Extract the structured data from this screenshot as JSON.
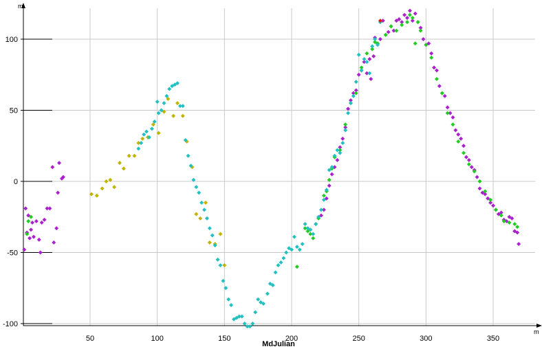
{
  "chart_data": {
    "type": "scatter",
    "xlabel": "MdJulian",
    "y_unit": "m",
    "x_unit": "m",
    "xlim": [
      0,
      375
    ],
    "ylim": [
      -102,
      120
    ],
    "xticks": [
      50,
      100,
      150,
      200,
      250,
      300,
      350
    ],
    "yticks": [
      -100,
      -50,
      0,
      50,
      100
    ],
    "grid": true,
    "series": [
      {
        "color": "#aa22cc",
        "points": [
          [
            1,
            -48
          ],
          [
            2,
            -19
          ],
          [
            3,
            -36
          ],
          [
            4,
            -24
          ],
          [
            5,
            -40
          ],
          [
            6,
            -34
          ],
          [
            7,
            -29
          ],
          [
            8,
            -39
          ],
          [
            10,
            -28
          ],
          [
            12,
            -41
          ],
          [
            13,
            -50
          ],
          [
            14,
            -29
          ],
          [
            16,
            -27
          ],
          [
            18,
            -19
          ],
          [
            20,
            -19
          ],
          [
            22,
            10
          ],
          [
            23,
            -43
          ],
          [
            25,
            -33
          ],
          [
            26,
            -8
          ],
          [
            27,
            13
          ],
          [
            29,
            2
          ],
          [
            30,
            3
          ],
          [
            236,
            24
          ],
          [
            238,
            30
          ],
          [
            240,
            38
          ],
          [
            242,
            51
          ],
          [
            244,
            57
          ],
          [
            246,
            62
          ],
          [
            248,
            64
          ],
          [
            250,
            75
          ],
          [
            252,
            78
          ],
          [
            254,
            84
          ],
          [
            256,
            76
          ],
          [
            258,
            86
          ],
          [
            259,
            72
          ],
          [
            261,
            88
          ],
          [
            262,
            101
          ],
          [
            264,
            97
          ],
          [
            266,
            100
          ],
          [
            268,
            113
          ],
          [
            270,
            103
          ],
          [
            272,
            105
          ],
          [
            274,
            109
          ],
          [
            276,
            106
          ],
          [
            278,
            113
          ],
          [
            280,
            114
          ],
          [
            282,
            112
          ],
          [
            284,
            117
          ],
          [
            286,
            115
          ],
          [
            288,
            120
          ],
          [
            290,
            113
          ],
          [
            292,
            118
          ],
          [
            294,
            112
          ],
          [
            296,
            108
          ],
          [
            298,
            100
          ],
          [
            300,
            96
          ],
          [
            302,
            97
          ],
          [
            304,
            90
          ],
          [
            306,
            80
          ],
          [
            308,
            78
          ],
          [
            310,
            67
          ],
          [
            312,
            62
          ],
          [
            314,
            60
          ],
          [
            316,
            52
          ],
          [
            318,
            48
          ],
          [
            320,
            45
          ],
          [
            322,
            36
          ],
          [
            324,
            33
          ],
          [
            326,
            30
          ],
          [
            328,
            25
          ],
          [
            330,
            17
          ],
          [
            332,
            15
          ],
          [
            334,
            10
          ],
          [
            336,
            8
          ],
          [
            338,
            3
          ],
          [
            340,
            -5
          ],
          [
            342,
            -8
          ],
          [
            344,
            -9
          ],
          [
            346,
            -12
          ],
          [
            348,
            -15
          ],
          [
            350,
            -17
          ],
          [
            352,
            -20
          ],
          [
            354,
            -23
          ],
          [
            356,
            -22
          ],
          [
            358,
            -27
          ],
          [
            360,
            -28
          ],
          [
            362,
            -25
          ],
          [
            364,
            -26
          ],
          [
            366,
            -35
          ],
          [
            368,
            -36
          ],
          [
            369,
            -44
          ],
          [
            222,
            -24
          ],
          [
            224,
            -20
          ],
          [
            226,
            -12
          ],
          [
            228,
            -3
          ],
          [
            230,
            5
          ],
          [
            232,
            10
          ],
          [
            234,
            15
          ]
        ]
      },
      {
        "color": "#22cc22",
        "points": [
          [
            3,
            -37
          ],
          [
            4,
            -28
          ],
          [
            6,
            -25
          ],
          [
            204,
            -60
          ],
          [
            210,
            -33
          ],
          [
            212,
            -35
          ],
          [
            214,
            -37
          ],
          [
            216,
            -40
          ],
          [
            218,
            -30
          ],
          [
            220,
            -26
          ],
          [
            224,
            -10
          ],
          [
            226,
            -7
          ],
          [
            228,
            1
          ],
          [
            230,
            9
          ],
          [
            232,
            17
          ],
          [
            236,
            22
          ],
          [
            240,
            40
          ],
          [
            244,
            55
          ],
          [
            248,
            62
          ],
          [
            252,
            80
          ],
          [
            256,
            90
          ],
          [
            260,
            93
          ],
          [
            262,
            98
          ],
          [
            264,
            97
          ],
          [
            266,
            112
          ],
          [
            270,
            103
          ],
          [
            274,
            109
          ],
          [
            278,
            106
          ],
          [
            282,
            110
          ],
          [
            286,
            112
          ],
          [
            288,
            117
          ],
          [
            290,
            115
          ],
          [
            292,
            97
          ],
          [
            294,
            112
          ],
          [
            296,
            106
          ],
          [
            300,
            96
          ],
          [
            304,
            87
          ],
          [
            308,
            72
          ],
          [
            312,
            62
          ],
          [
            316,
            48
          ],
          [
            320,
            40
          ],
          [
            324,
            28
          ],
          [
            328,
            20
          ],
          [
            332,
            12
          ],
          [
            336,
            7
          ],
          [
            340,
            0
          ],
          [
            344,
            -7
          ],
          [
            348,
            -13
          ],
          [
            352,
            -20
          ],
          [
            356,
            -24
          ],
          [
            358,
            -28
          ],
          [
            362,
            -29
          ],
          [
            366,
            -30
          ],
          [
            368,
            -32
          ]
        ]
      },
      {
        "color": "#c0b400",
        "points": [
          [
            51,
            -9
          ],
          [
            55,
            -10
          ],
          [
            59,
            -5
          ],
          [
            62,
            0
          ],
          [
            65,
            1
          ],
          [
            68,
            -4
          ],
          [
            72,
            13
          ],
          [
            75,
            9
          ],
          [
            79,
            18
          ],
          [
            83,
            18
          ],
          [
            86,
            27
          ],
          [
            89,
            30
          ],
          [
            93,
            31
          ],
          [
            97,
            40
          ],
          [
            101,
            34
          ],
          [
            105,
            49
          ],
          [
            108,
            58
          ],
          [
            112,
            46
          ],
          [
            115,
            55
          ],
          [
            119,
            46
          ],
          [
            122,
            28
          ],
          [
            126,
            10
          ],
          [
            129,
            -23
          ],
          [
            132,
            -26
          ],
          [
            136,
            -15
          ],
          [
            139,
            -43
          ],
          [
            143,
            -44
          ],
          [
            147,
            -37
          ],
          [
            150,
            -59
          ]
        ]
      },
      {
        "color": "#22c0c0",
        "points": [
          [
            86,
            23
          ],
          [
            88,
            27
          ],
          [
            90,
            33
          ],
          [
            92,
            35
          ],
          [
            94,
            31
          ],
          [
            96,
            37
          ],
          [
            98,
            42
          ],
          [
            100,
            56
          ],
          [
            101,
            48
          ],
          [
            103,
            50
          ],
          [
            105,
            55
          ],
          [
            107,
            60
          ],
          [
            109,
            65
          ],
          [
            111,
            67
          ],
          [
            113,
            68
          ],
          [
            115,
            69
          ],
          [
            117,
            53
          ],
          [
            119,
            53
          ],
          [
            121,
            29
          ],
          [
            123,
            18
          ],
          [
            125,
            11
          ],
          [
            127,
            1
          ],
          [
            129,
            -4
          ],
          [
            131,
            -8
          ],
          [
            133,
            -15
          ],
          [
            135,
            -20
          ],
          [
            137,
            -26
          ],
          [
            139,
            -33
          ],
          [
            141,
            -38
          ],
          [
            143,
            -45
          ],
          [
            145,
            -55
          ],
          [
            147,
            -59
          ],
          [
            149,
            -70
          ],
          [
            151,
            -75
          ],
          [
            153,
            -83
          ],
          [
            155,
            -87
          ],
          [
            157,
            -97
          ],
          [
            159,
            -96
          ],
          [
            161,
            -95
          ],
          [
            163,
            -95
          ],
          [
            165,
            -100
          ],
          [
            167,
            -102
          ],
          [
            169,
            -102
          ],
          [
            171,
            -100
          ],
          [
            173,
            -92
          ],
          [
            175,
            -83
          ],
          [
            177,
            -85
          ],
          [
            179,
            -86
          ],
          [
            182,
            -79
          ],
          [
            184,
            -72
          ],
          [
            186,
            -73
          ],
          [
            188,
            -64
          ],
          [
            190,
            -59
          ],
          [
            192,
            -57
          ],
          [
            194,
            -54
          ],
          [
            196,
            -50
          ],
          [
            198,
            -47
          ],
          [
            200,
            -48
          ],
          [
            202,
            -39
          ],
          [
            204,
            -46
          ],
          [
            206,
            -48
          ],
          [
            208,
            -44
          ],
          [
            210,
            -30
          ],
          [
            212,
            -33
          ],
          [
            214,
            -34
          ],
          [
            216,
            -37
          ],
          [
            218,
            -30
          ],
          [
            220,
            -25
          ],
          [
            222,
            -20
          ],
          [
            224,
            -13
          ],
          [
            226,
            -6
          ],
          [
            228,
            8
          ],
          [
            230,
            10
          ],
          [
            232,
            18
          ],
          [
            234,
            22
          ],
          [
            236,
            20
          ],
          [
            238,
            27
          ],
          [
            240,
            36
          ],
          [
            242,
            48
          ],
          [
            244,
            55
          ],
          [
            246,
            60
          ],
          [
            248,
            70
          ],
          [
            250,
            89
          ],
          [
            252,
            78
          ],
          [
            254,
            86
          ],
          [
            256,
            84
          ],
          [
            258,
            76
          ],
          [
            260,
            95
          ],
          [
            262,
            100
          ],
          [
            264,
            96
          ],
          [
            266,
            112
          ]
        ]
      },
      {
        "color": "#e02020",
        "points": [
          [
            266,
            113
          ]
        ]
      }
    ]
  }
}
